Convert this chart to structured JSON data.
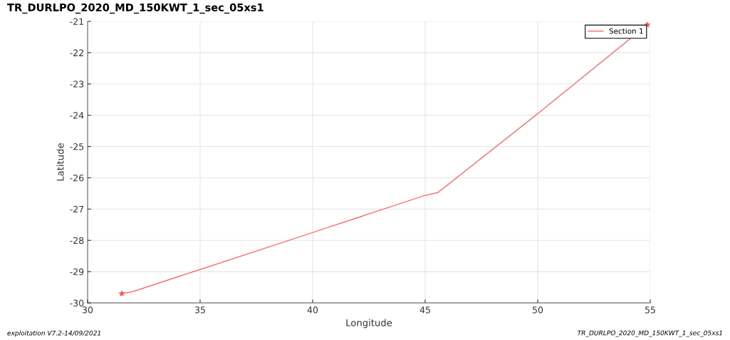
{
  "chart_data": {
    "type": "line",
    "title": "TR_DURLPO_2020_MD_150KWT_1_sec_05xs1",
    "xlabel": "Longitude",
    "ylabel": "Latitude",
    "x": [
      31.52,
      31.75,
      31.96,
      35.0,
      40.0,
      45.0,
      45.57,
      50.0,
      54.87
    ],
    "series": [
      {
        "name": "Section 1",
        "color": "#ff5a5a",
        "values": [
          -29.7,
          -29.67,
          -29.65,
          -28.93,
          -27.75,
          -26.56,
          -26.47,
          -23.95,
          -21.11
        ]
      },
      {
        "type": "scatter",
        "color": "#ff5a5a",
        "marker": "star",
        "x": [
          31.52,
          54.87
        ],
        "values": [
          -29.7,
          -21.11
        ]
      }
    ],
    "xlim": [
      30,
      55
    ],
    "xticks": [
      30,
      35,
      40,
      45,
      50,
      55
    ],
    "ylim": [
      -30,
      -21
    ],
    "yticks": [
      -30,
      -29,
      -28,
      -27,
      -26,
      -25,
      -24,
      -23,
      -22,
      -21
    ],
    "grid": true,
    "legend": "top right",
    "annotations": [
      "exploitation V7.2-14/09/2021",
      "TR_DURLPO_2020_MD_150KWT_1_sec_05xs1"
    ]
  }
}
